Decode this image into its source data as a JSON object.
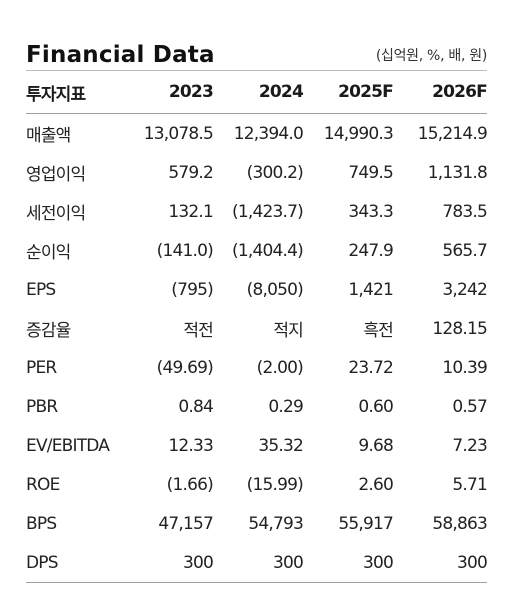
{
  "header": {
    "title": "Financial Data",
    "unit": "(십억원, %, 배, 원)"
  },
  "table": {
    "columns": [
      "투자지표",
      "2023",
      "2024",
      "2025F",
      "2026F"
    ],
    "rows": [
      [
        "매출액",
        "13,078.5",
        "12,394.0",
        "14,990.3",
        "15,214.9"
      ],
      [
        "영업이익",
        "579.2",
        "(300.2)",
        "749.5",
        "1,131.8"
      ],
      [
        "세전이익",
        "132.1",
        "(1,423.7)",
        "343.3",
        "783.5"
      ],
      [
        "순이익",
        "(141.0)",
        "(1,404.4)",
        "247.9",
        "565.7"
      ],
      [
        "EPS",
        "(795)",
        "(8,050)",
        "1,421",
        "3,242"
      ],
      [
        "증감율",
        "적전",
        "적지",
        "흑전",
        "128.15"
      ],
      [
        "PER",
        "(49.69)",
        "(2.00)",
        "23.72",
        "10.39"
      ],
      [
        "PBR",
        "0.84",
        "0.29",
        "0.60",
        "0.57"
      ],
      [
        "EV/EBITDA",
        "12.33",
        "35.32",
        "9.68",
        "7.23"
      ],
      [
        "ROE",
        "(1.66)",
        "(15.99)",
        "2.60",
        "5.71"
      ],
      [
        "BPS",
        "47,157",
        "54,793",
        "55,917",
        "58,863"
      ],
      [
        "DPS",
        "300",
        "300",
        "300",
        "300"
      ]
    ]
  }
}
